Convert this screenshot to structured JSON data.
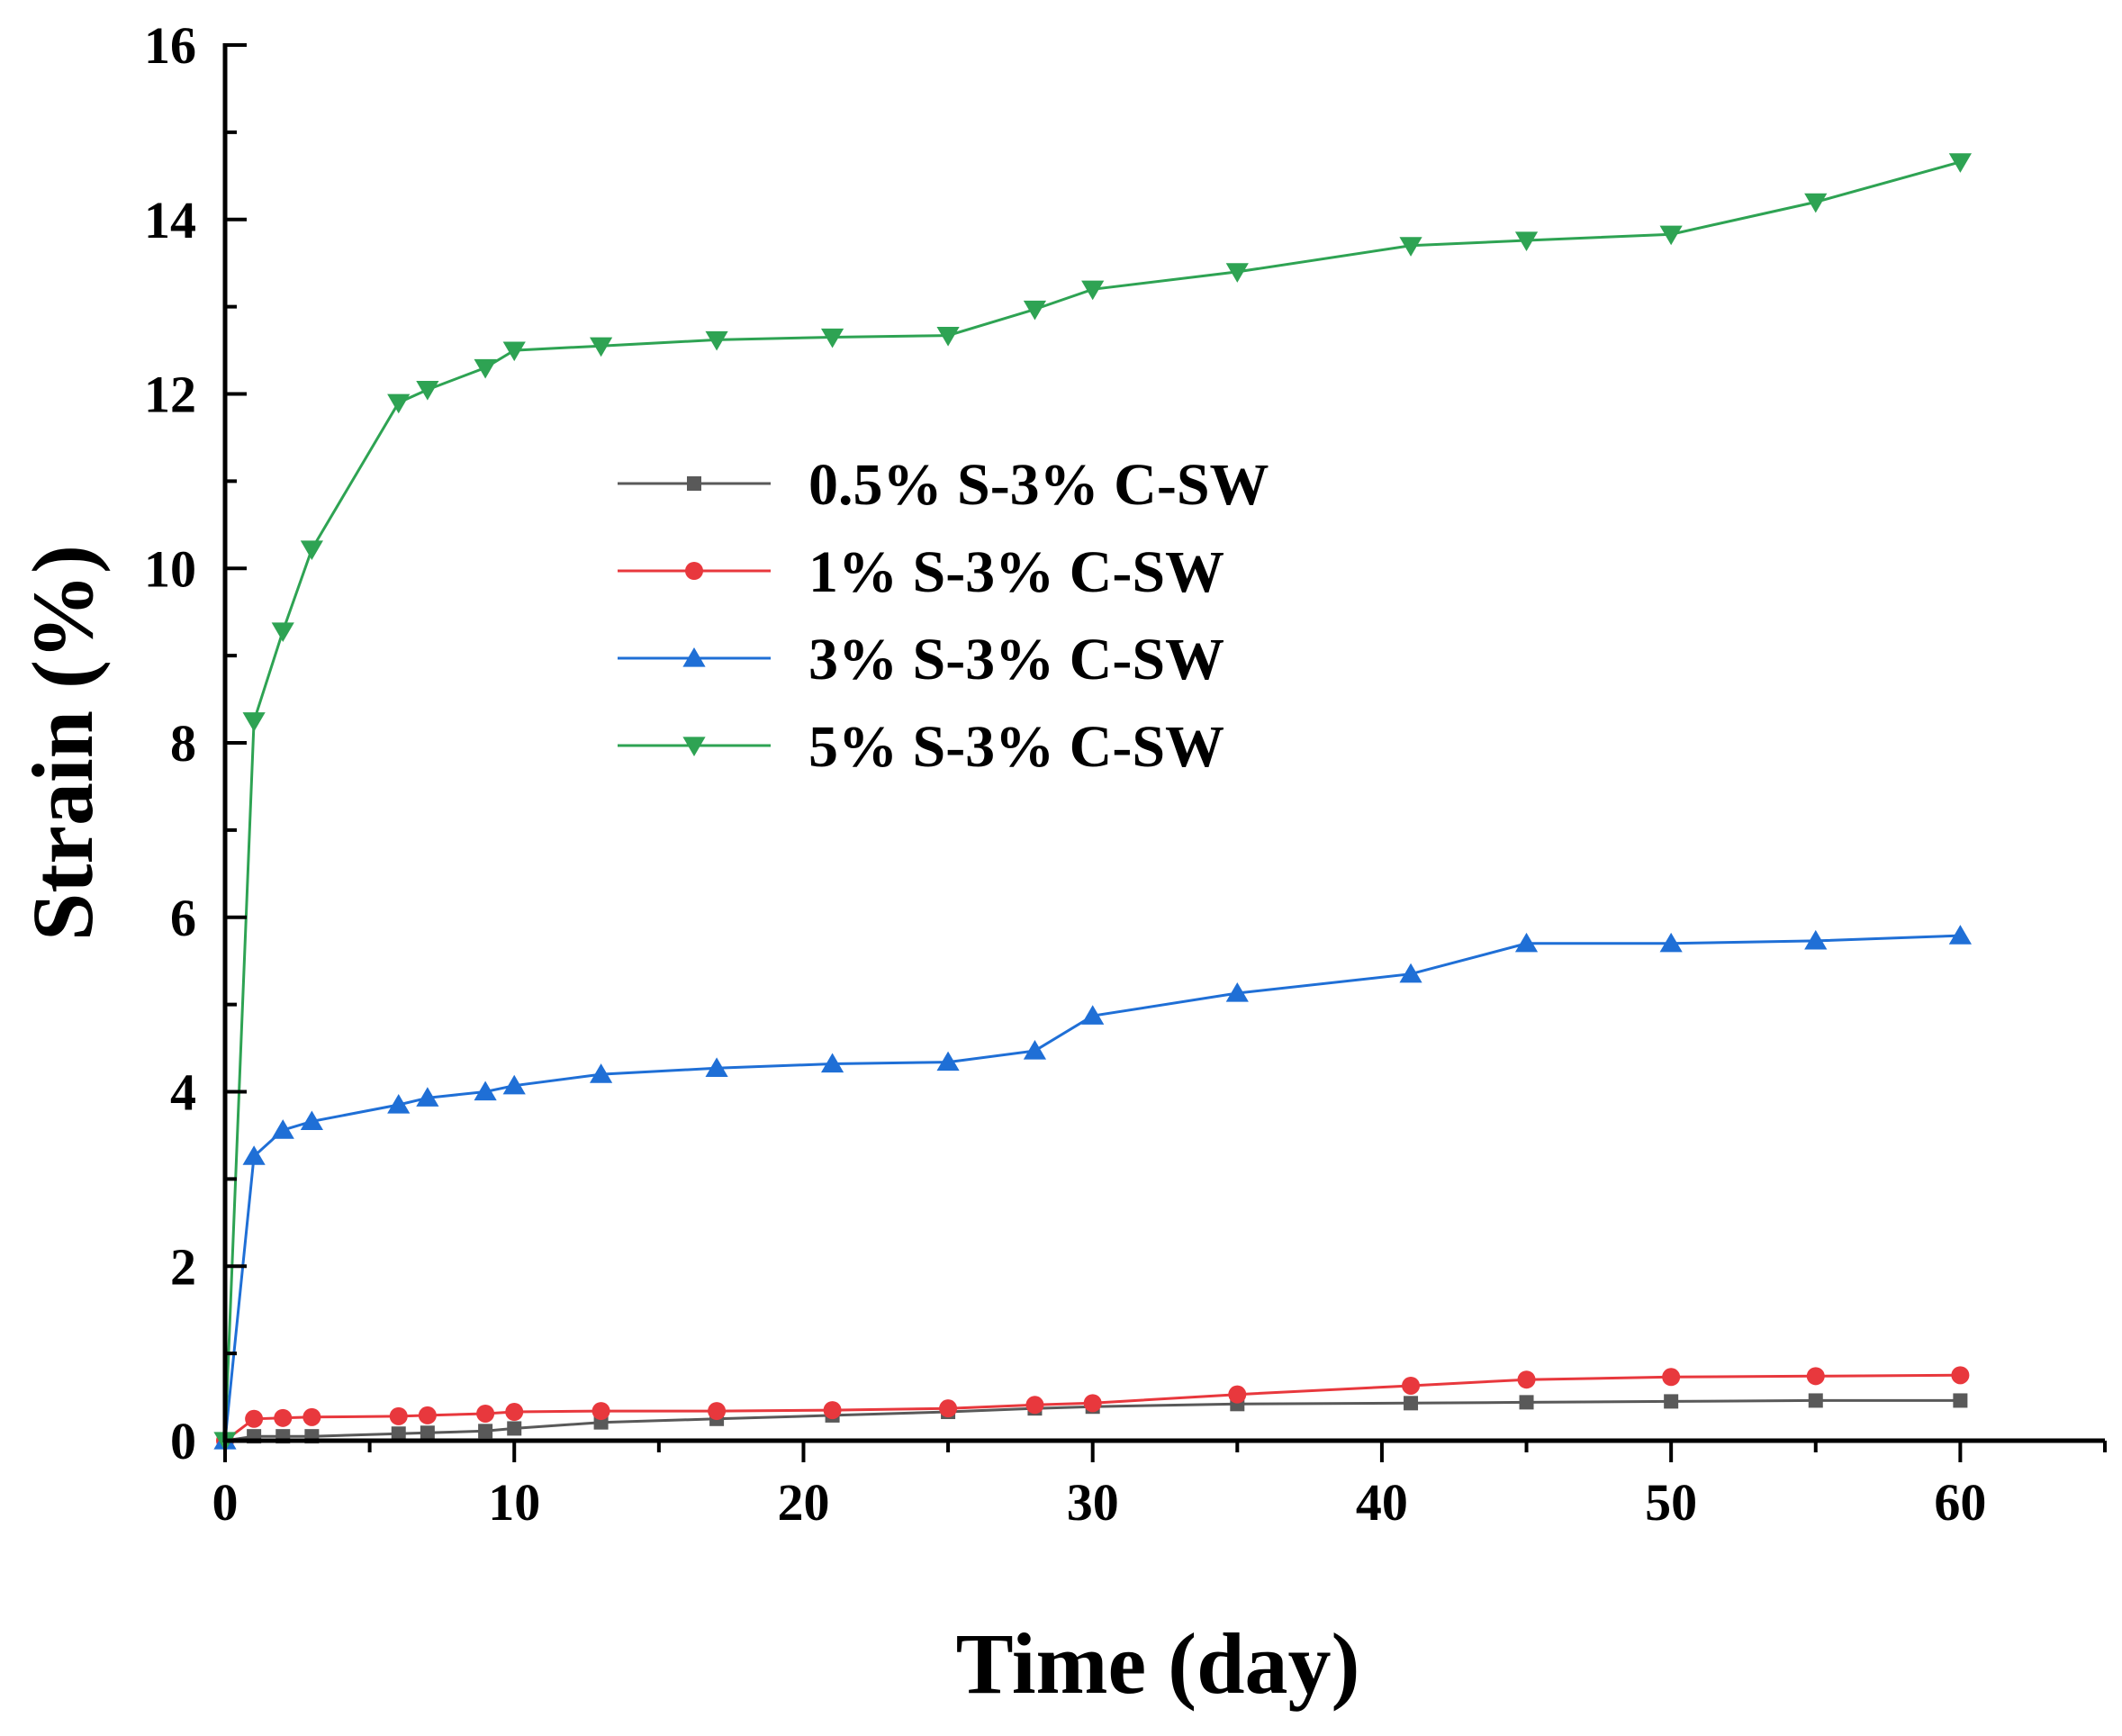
{
  "chart_data": {
    "type": "line",
    "title": "",
    "xlabel": "Time (day)",
    "ylabel": "Strain (%)",
    "xlim": [
      0,
      65
    ],
    "ylim": [
      0,
      16
    ],
    "xticks": [
      0,
      10,
      20,
      30,
      40,
      50,
      60
    ],
    "yticks": [
      0,
      2,
      4,
      6,
      8,
      10,
      12,
      14,
      16
    ],
    "xtick_labels": [
      "0",
      "10",
      "20",
      "30",
      "40",
      "50",
      "60"
    ],
    "ytick_labels": [
      "0",
      "2",
      "4",
      "6",
      "8",
      "10",
      "12",
      "14",
      "16"
    ],
    "grid": false,
    "legend_position": "center-left",
    "x": [
      0,
      1,
      2,
      3,
      6,
      7,
      9,
      10,
      13,
      17,
      21,
      25,
      28,
      30,
      35,
      41,
      45,
      50,
      55,
      60
    ],
    "series": [
      {
        "name": "0.5% S-3% C-SW",
        "color": "#595959",
        "marker": "square",
        "values": [
          0,
          0.05,
          0.05,
          0.05,
          0.08,
          0.09,
          0.11,
          0.14,
          0.21,
          0.25,
          0.29,
          0.33,
          0.37,
          0.39,
          0.42,
          0.43,
          0.44,
          0.45,
          0.46,
          0.46
        ]
      },
      {
        "name": "1% S-3% C-SW",
        "color": "#e8383d",
        "marker": "circle",
        "values": [
          0,
          0.25,
          0.26,
          0.27,
          0.28,
          0.29,
          0.31,
          0.33,
          0.34,
          0.34,
          0.35,
          0.37,
          0.41,
          0.43,
          0.53,
          0.63,
          0.7,
          0.73,
          0.74,
          0.75
        ]
      },
      {
        "name": "3% S-3% C-SW",
        "color": "#1f6fd6",
        "marker": "triangle-up",
        "values": [
          0,
          3.26,
          3.56,
          3.66,
          3.85,
          3.93,
          4.0,
          4.07,
          4.2,
          4.27,
          4.32,
          4.34,
          4.47,
          4.87,
          5.13,
          5.35,
          5.7,
          5.7,
          5.73,
          5.79
        ]
      },
      {
        "name": "5% S-3% C-SW",
        "color": "#2ea353",
        "marker": "triangle-down",
        "values": [
          0,
          8.25,
          9.28,
          10.22,
          11.9,
          12.05,
          12.3,
          12.5,
          12.55,
          12.62,
          12.65,
          12.67,
          12.97,
          13.2,
          13.4,
          13.7,
          13.76,
          13.83,
          14.2,
          14.66
        ]
      }
    ]
  }
}
